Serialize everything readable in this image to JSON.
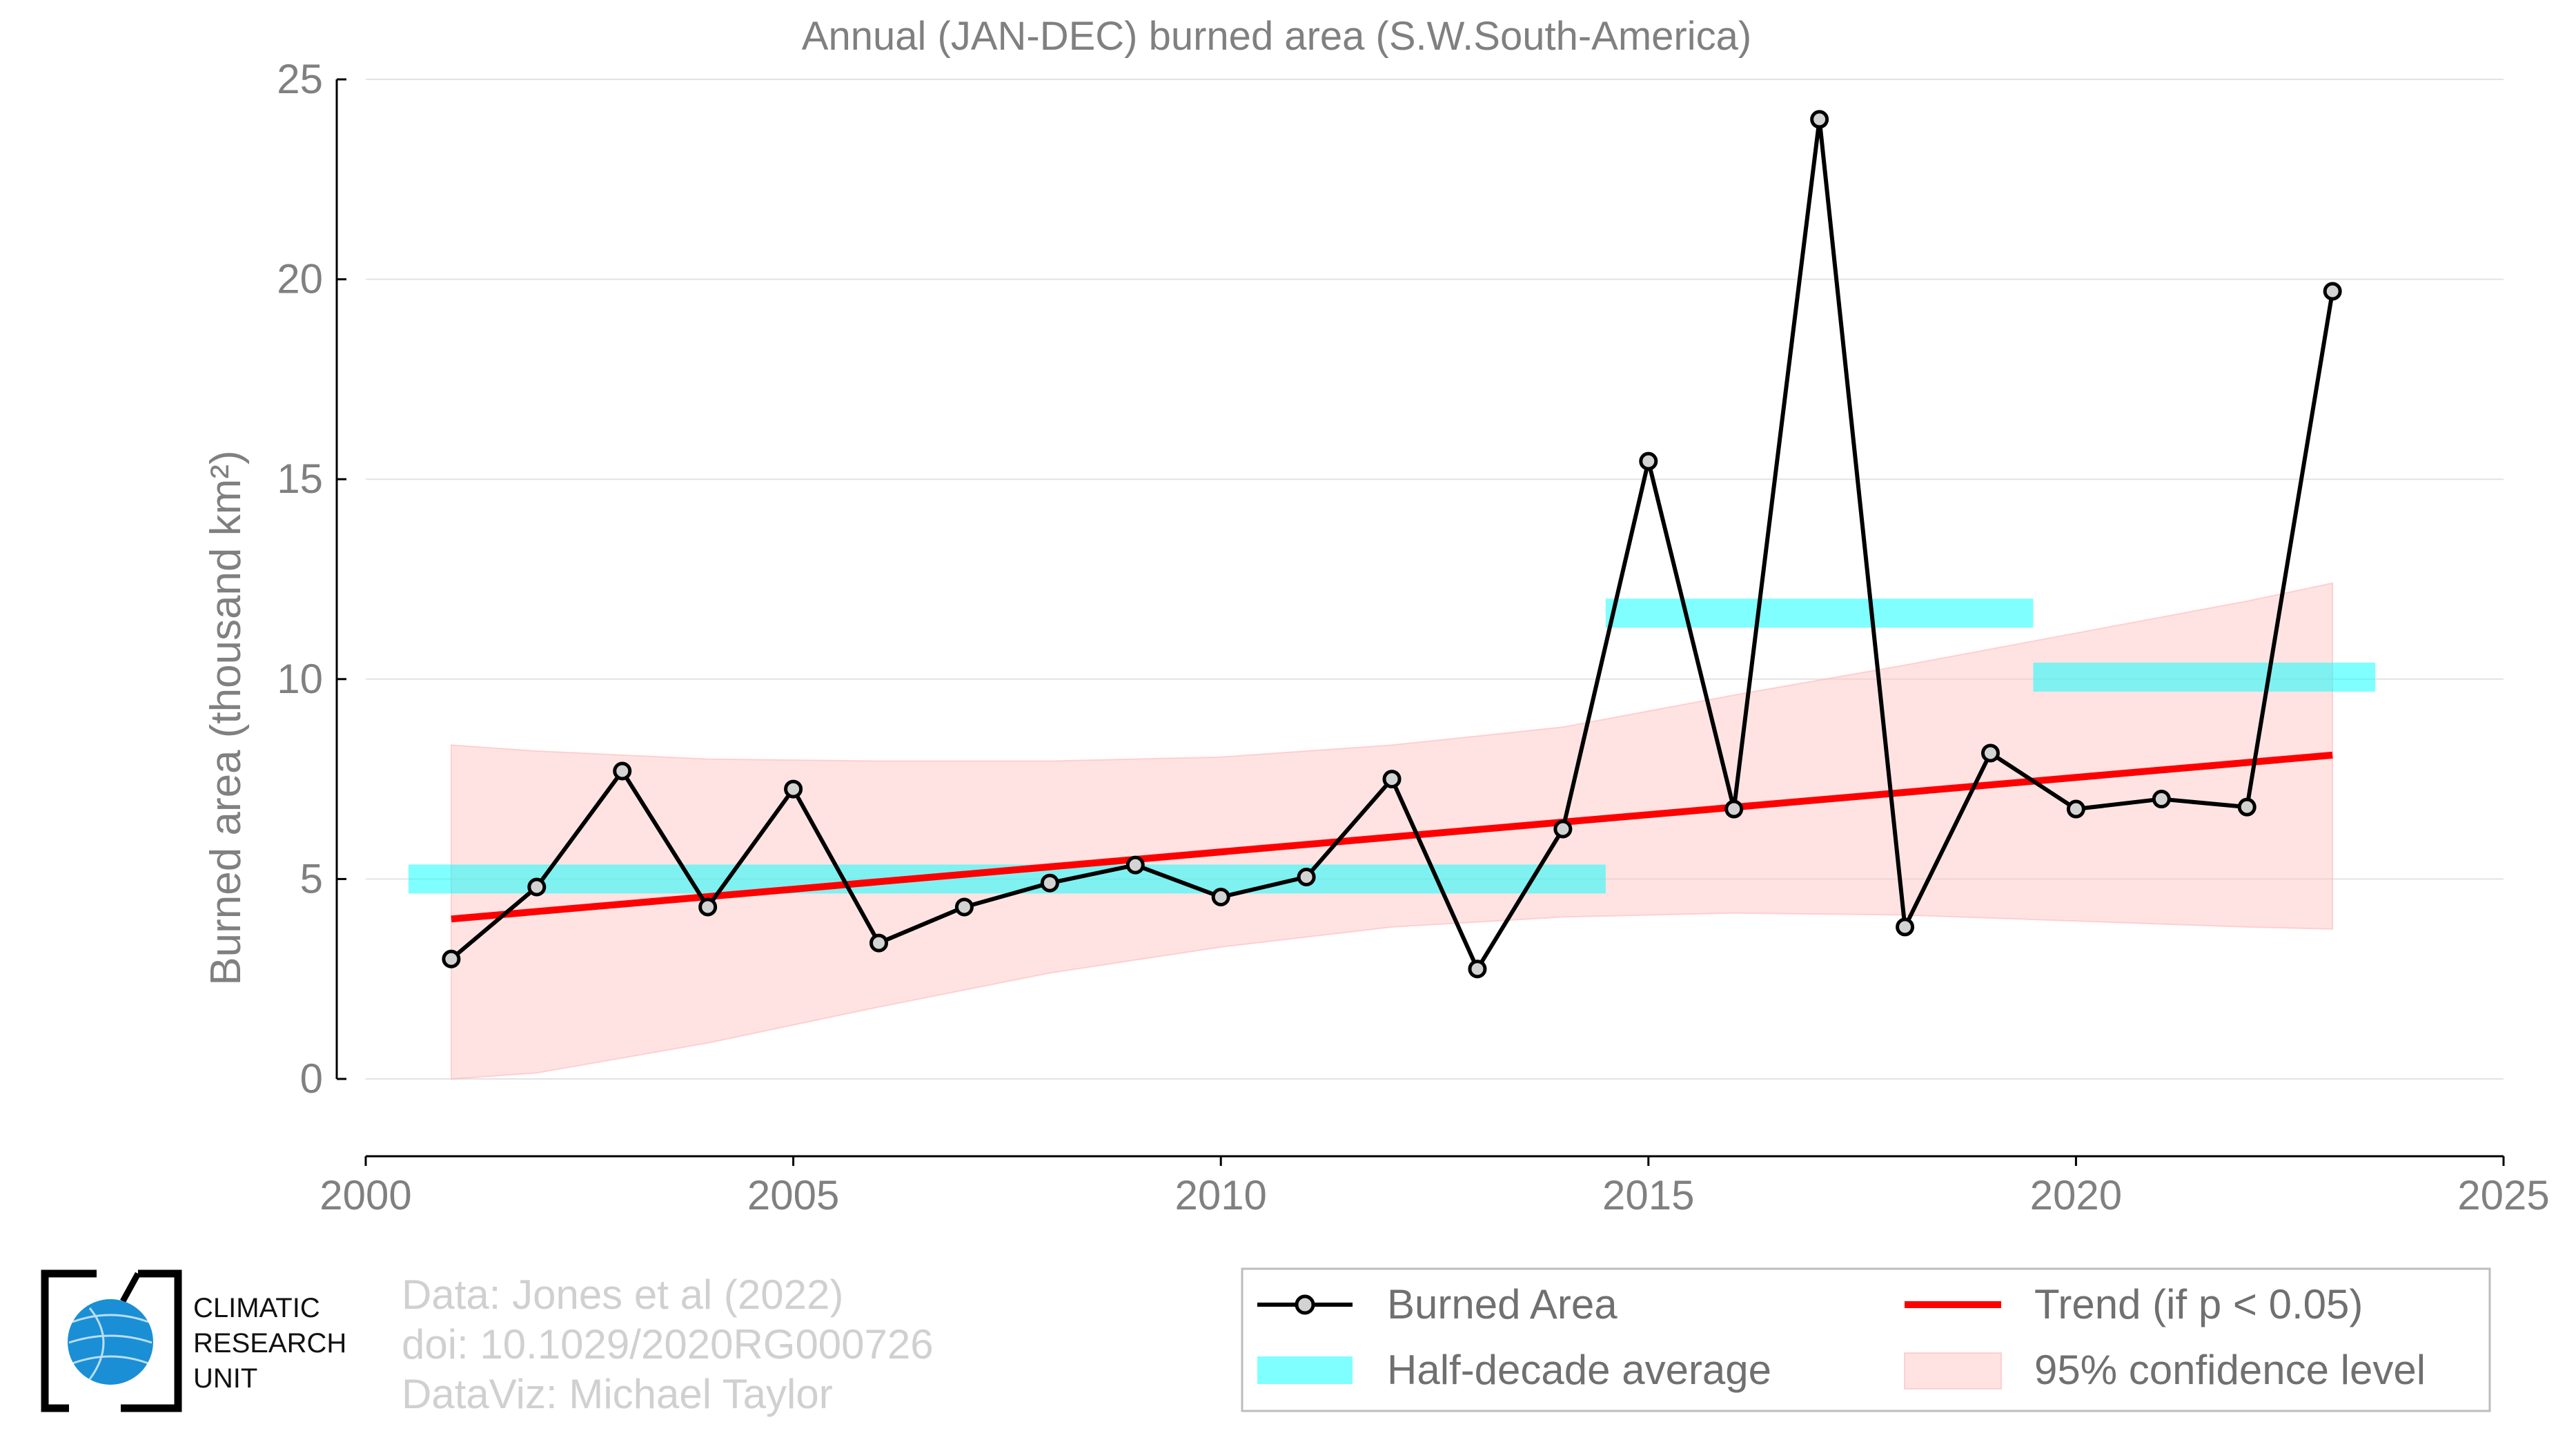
{
  "chart_data": {
    "type": "line",
    "title": "Annual (JAN-DEC) burned area (S.W.South-America)",
    "ylabel": "Burned area (thousand km²)",
    "xlabel": "",
    "xlim": [
      2000,
      2025
    ],
    "ylim": [
      0,
      25
    ],
    "xticks": [
      "2000",
      "2005",
      "2010",
      "2015",
      "2020",
      "2025"
    ],
    "yticks": [
      "0",
      "5",
      "10",
      "15",
      "20",
      "25"
    ],
    "grid": "horizontal",
    "legend_position": "bottom-right",
    "series": [
      {
        "name": "Burned Area",
        "color": "#000000",
        "x": [
          2001,
          2002,
          2003,
          2004,
          2005,
          2006,
          2007,
          2008,
          2009,
          2010,
          2011,
          2012,
          2013,
          2014,
          2015,
          2016,
          2017,
          2018,
          2019,
          2020,
          2021,
          2022,
          2023
        ],
        "values": [
          3.0,
          4.8,
          7.7,
          4.3,
          7.25,
          3.4,
          4.3,
          4.9,
          5.35,
          4.55,
          5.05,
          7.5,
          2.75,
          6.25,
          15.45,
          6.75,
          24.0,
          3.8,
          8.15,
          6.75,
          7.0,
          6.8,
          19.7
        ]
      },
      {
        "name": "Half-decade average",
        "color": "#00ffff",
        "segments": [
          {
            "x_start": 2000.5,
            "x_end": 2014.5,
            "value": 5.0
          },
          {
            "x_start": 2014.5,
            "x_end": 2019.5,
            "value": 11.65
          },
          {
            "x_start": 2019.5,
            "x_end": 2023.5,
            "value": 10.05
          }
        ]
      },
      {
        "name": "Trend (if p < 0.05)",
        "color": "#ff0000",
        "x": [
          2001,
          2023
        ],
        "values": [
          4.0,
          8.1
        ]
      },
      {
        "name": "95% confidence level",
        "color": "#ffc0c0",
        "x": [
          2001,
          2002,
          2004,
          2006,
          2008,
          2010,
          2012,
          2014,
          2016,
          2018,
          2020,
          2022,
          2023
        ],
        "lower": [
          0.0,
          0.15,
          0.9,
          1.8,
          2.65,
          3.3,
          3.8,
          4.05,
          4.15,
          4.1,
          3.95,
          3.8,
          3.75
        ],
        "upper": [
          8.35,
          8.2,
          8.0,
          7.95,
          7.95,
          8.05,
          8.35,
          8.8,
          9.6,
          10.35,
          11.15,
          11.95,
          12.4
        ]
      }
    ]
  },
  "credits": {
    "line1": "Data: Jones et al (2022)",
    "line2": "doi: 10.1029/2020RG000726",
    "line3": "DataViz: Michael Taylor"
  },
  "logo": {
    "line1": "CLIMATIC",
    "line2": "RESEARCH",
    "line3": "UNIT"
  },
  "colors": {
    "axis_text": "#808080",
    "grid": "#e3e3e3",
    "credits_text": "#d0d0d0"
  }
}
